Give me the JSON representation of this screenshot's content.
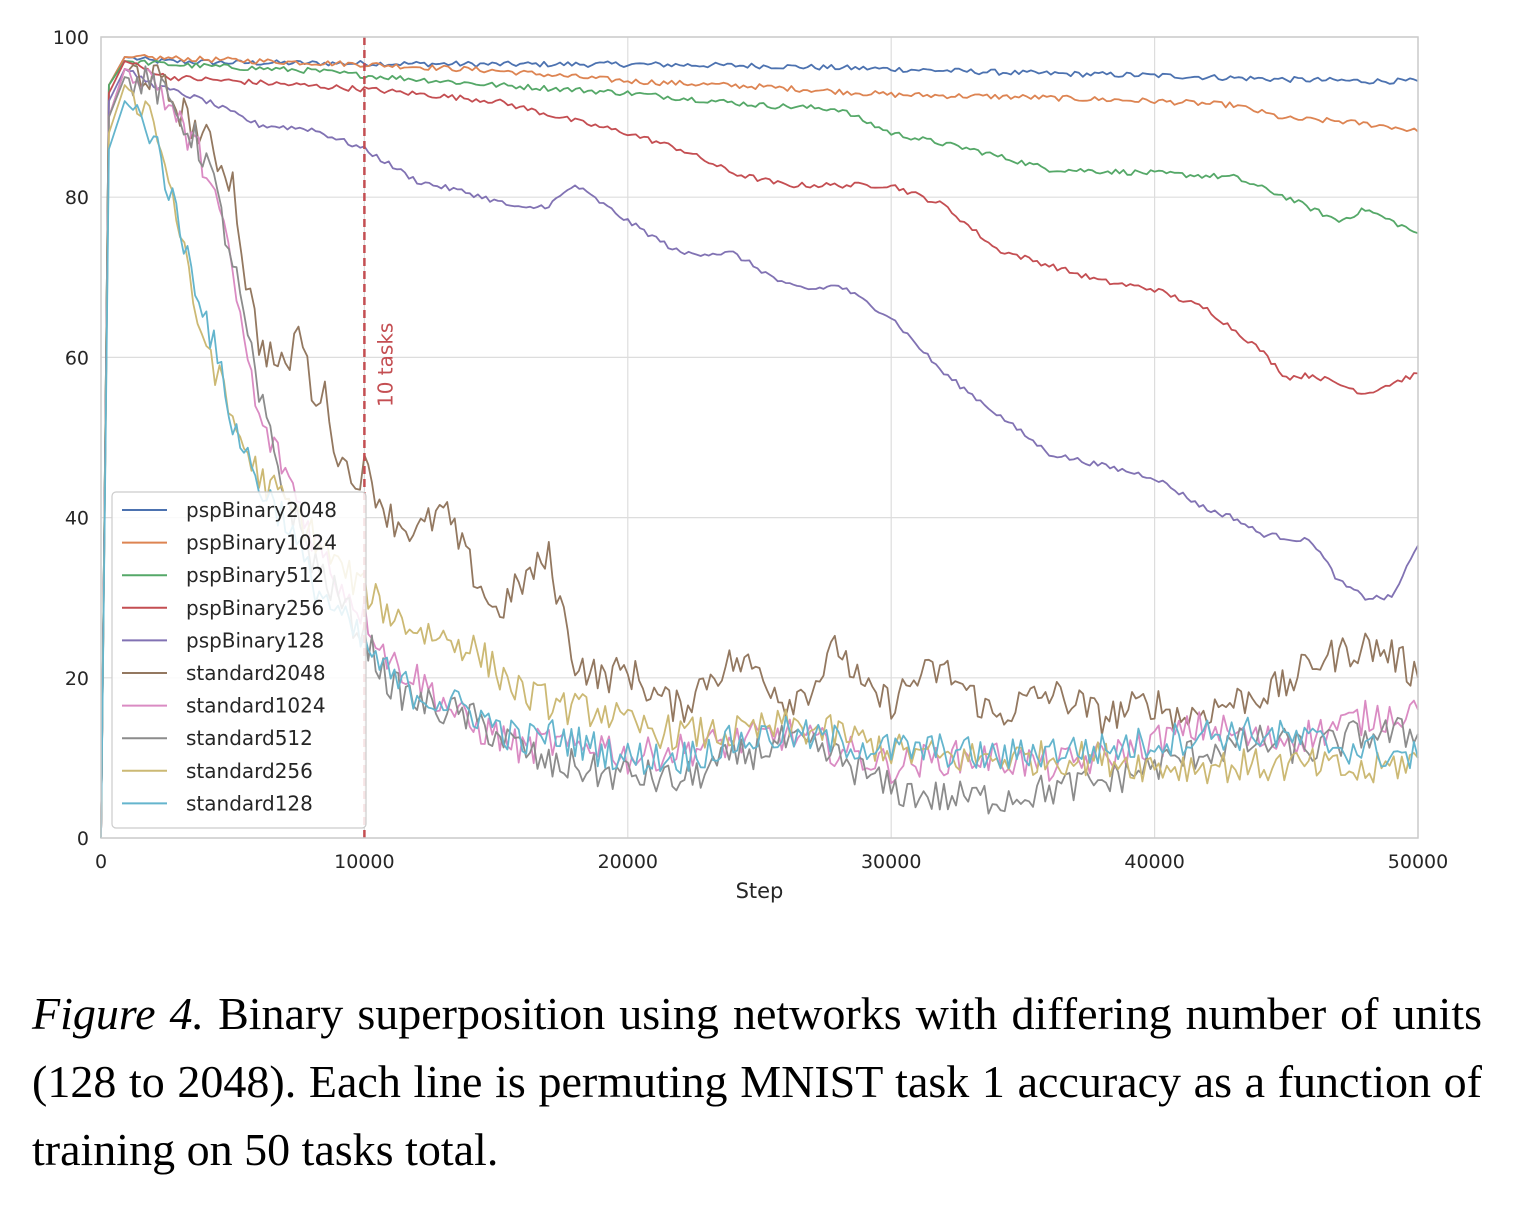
{
  "chart_data": {
    "type": "line",
    "title": "",
    "xlabel": "Step",
    "ylabel": "",
    "xlim": [
      0,
      50000
    ],
    "ylim": [
      0,
      100
    ],
    "xticks": [
      0,
      10000,
      20000,
      30000,
      40000,
      50000
    ],
    "yticks": [
      0,
      20,
      40,
      60,
      80,
      100
    ],
    "grid": true,
    "legend_position": "lower-left",
    "annotation": {
      "text": "10 tasks",
      "x": 10000,
      "color": "#c44e52",
      "style": "dashed vertical line"
    },
    "series": [
      {
        "name": "pspBinary2048",
        "color": "#4c72b0",
        "x": [
          0,
          300,
          900,
          2000,
          5000,
          10000,
          15000,
          20000,
          25000,
          30000,
          35000,
          40000,
          45000,
          48000,
          50000
        ],
        "y": [
          0,
          94,
          97.5,
          97,
          96.8,
          96.7,
          96.6,
          96.6,
          96.4,
          96,
          95.5,
          95.2,
          94.7,
          94.5,
          94.5
        ]
      },
      {
        "name": "pspBinary1024",
        "color": "#dd8452",
        "x": [
          0,
          300,
          900,
          3000,
          8000,
          10000,
          15000,
          20000,
          25000,
          30000,
          35000,
          40000,
          43000,
          45000,
          47000,
          49000,
          50000
        ],
        "y": [
          0,
          94,
          97.5,
          97.3,
          96.8,
          96.6,
          95.8,
          94.5,
          93.8,
          92.8,
          92.5,
          92,
          91.5,
          89.8,
          89.5,
          88.8,
          88.2
        ]
      },
      {
        "name": "pspBinary512",
        "color": "#55a868",
        "x": [
          0,
          300,
          900,
          3000,
          8000,
          10000,
          15000,
          20000,
          25000,
          28000,
          30000,
          33000,
          36000,
          40000,
          43000,
          45000,
          47000,
          48000,
          50000
        ],
        "y": [
          0,
          94,
          97,
          96.5,
          95.8,
          95.2,
          94,
          93,
          91.5,
          91,
          88,
          86,
          83.5,
          83,
          82.5,
          80,
          77,
          78.5,
          75.5
        ]
      },
      {
        "name": "pspBinary256",
        "color": "#c44e52",
        "x": [
          0,
          300,
          900,
          2500,
          5000,
          10000,
          15000,
          18000,
          20000,
          22000,
          24000,
          26000,
          28000,
          30000,
          32000,
          34000,
          36000,
          38000,
          40000,
          42000,
          44000,
          45000,
          46000,
          48000,
          50000
        ],
        "y": [
          0,
          93,
          97,
          95,
          94.5,
          93.5,
          92,
          89.5,
          88,
          86,
          83,
          81.5,
          81.5,
          81.5,
          79,
          73.5,
          71.5,
          69.5,
          68.5,
          66,
          61,
          57.5,
          57.8,
          55.5,
          58
        ]
      },
      {
        "name": "pspBinary128",
        "color": "#8172b3",
        "x": [
          0,
          300,
          900,
          2000,
          4000,
          6000,
          8000,
          10000,
          12000,
          14000,
          16000,
          17000,
          18000,
          20000,
          22000,
          24000,
          26000,
          27000,
          28000,
          30000,
          32000,
          34000,
          36000,
          38000,
          40000,
          42000,
          43000,
          44000,
          46000,
          47000,
          48000,
          49000,
          50000
        ],
        "y": [
          0,
          92,
          96,
          94,
          92,
          89,
          88.5,
          86,
          82,
          80.5,
          78.5,
          79,
          81.5,
          77,
          73,
          73,
          69,
          68.5,
          69,
          65,
          58,
          53,
          48,
          46.5,
          45,
          41,
          40,
          38,
          37,
          32,
          30,
          30,
          36.5
        ]
      },
      {
        "name": "standard2048",
        "color": "#937860",
        "x": [
          0,
          300,
          900,
          2000,
          3000,
          4000,
          5000,
          5500,
          6000,
          7000,
          7500,
          8000,
          8500,
          9000,
          9500,
          10000,
          11000,
          12000,
          13000,
          14000,
          15000,
          16000,
          17000,
          18000,
          19000,
          20000,
          21000,
          22000,
          23000,
          24000,
          25000,
          26000,
          27000,
          28000,
          29000,
          30000,
          31000,
          32000,
          33000,
          34000,
          35000,
          36000,
          37000,
          38000,
          39000,
          40000,
          41000,
          42000,
          43000,
          44000,
          45000,
          46000,
          47000,
          48000,
          49000,
          50000
        ],
        "y": [
          0,
          90,
          96,
          95,
          91,
          87,
          82,
          70,
          62,
          58,
          64,
          56,
          55,
          48,
          45,
          46,
          40,
          38,
          41,
          34,
          28,
          32,
          35,
          22,
          20,
          21,
          18,
          16,
          20,
          22,
          21,
          17,
          19,
          24,
          18,
          17,
          20,
          21,
          18,
          15,
          17,
          18,
          17,
          15,
          16,
          17,
          15,
          16,
          17,
          18,
          19,
          22,
          23,
          24,
          23,
          20
        ]
      },
      {
        "name": "standard1024",
        "color": "#da8bc3",
        "x": [
          0,
          300,
          900,
          2000,
          3000,
          4000,
          4500,
          5000,
          6000,
          7000,
          8000,
          9000,
          10000,
          11000,
          12000,
          13000,
          14000,
          15000,
          16000,
          17000,
          18000,
          19000,
          20000,
          22000,
          24000,
          26000,
          28000,
          30000,
          32000,
          34000,
          36000,
          38000,
          40000,
          42000,
          44000,
          46000,
          48000,
          50000
        ],
        "y": [
          0,
          90,
          96,
          95,
          89,
          84,
          78,
          70,
          52,
          46,
          38,
          32,
          28,
          22,
          20,
          17,
          14,
          13,
          11,
          12,
          11,
          12,
          10,
          11,
          12,
          13,
          11,
          9,
          10,
          10,
          9,
          10,
          12,
          14,
          12,
          13,
          15,
          16
        ]
      },
      {
        "name": "standard512",
        "color": "#8c8c8c",
        "x": [
          0,
          300,
          900,
          2000,
          3000,
          4000,
          5000,
          6000,
          7000,
          8000,
          9000,
          10000,
          11000,
          12000,
          13000,
          14000,
          15000,
          16000,
          17000,
          18000,
          19000,
          20000,
          22000,
          24000,
          26000,
          28000,
          30000,
          32000,
          34000,
          36000,
          38000,
          40000,
          42000,
          44000,
          46000,
          48000,
          50000
        ],
        "y": [
          0,
          90,
          95,
          94,
          90,
          85,
          72,
          55,
          43,
          35,
          30,
          25,
          19,
          17,
          16,
          15,
          13,
          11,
          9,
          9,
          8,
          8,
          7,
          10,
          12,
          10,
          6,
          5,
          5,
          6,
          7,
          9,
          11,
          12,
          11,
          13,
          13
        ]
      },
      {
        "name": "standard256",
        "color": "#ccb974",
        "x": [
          0,
          300,
          900,
          2000,
          3000,
          3500,
          4000,
          4500,
          5000,
          6000,
          7000,
          8000,
          9000,
          10000,
          11000,
          12000,
          13000,
          14000,
          15000,
          16000,
          17000,
          18000,
          19000,
          20000,
          22000,
          24000,
          26000,
          28000,
          30000,
          32000,
          34000,
          36000,
          38000,
          40000,
          42000,
          44000,
          46000,
          48000,
          50000
        ],
        "y": [
          0,
          88,
          94,
          90,
          76,
          66,
          62,
          57,
          52,
          45,
          42,
          38,
          34,
          31,
          28,
          26,
          25,
          24,
          21,
          18,
          17,
          16,
          16,
          14,
          13,
          13,
          14,
          13,
          11,
          10,
          10,
          10,
          10,
          9,
          9,
          9,
          9,
          8,
          10
        ]
      },
      {
        "name": "standard128",
        "color": "#64b5cd",
        "x": [
          0,
          300,
          900,
          2000,
          3000,
          4000,
          5000,
          6000,
          7000,
          8000,
          9000,
          10000,
          11000,
          12000,
          13000,
          14000,
          15000,
          16000,
          17000,
          18000,
          19000,
          20000,
          22000,
          24000,
          26000,
          28000,
          30000,
          32000,
          34000,
          36000,
          38000,
          40000,
          42000,
          44000,
          46000,
          48000,
          50000
        ],
        "y": [
          0,
          86,
          92,
          88,
          76,
          65,
          52,
          44,
          40,
          32,
          28,
          24,
          20,
          18,
          17,
          16,
          14,
          12,
          13,
          12,
          11,
          10,
          10,
          12,
          13,
          12,
          11,
          11,
          10,
          11,
          11,
          12,
          13,
          13,
          12,
          11,
          10
        ]
      }
    ]
  },
  "caption": {
    "label": "Figure 4.",
    "text": "Binary superposition using networks with differing number of units (128 to 2048). Each line is permuting MNIST task 1 accuracy as a function of training on 50 tasks total."
  }
}
